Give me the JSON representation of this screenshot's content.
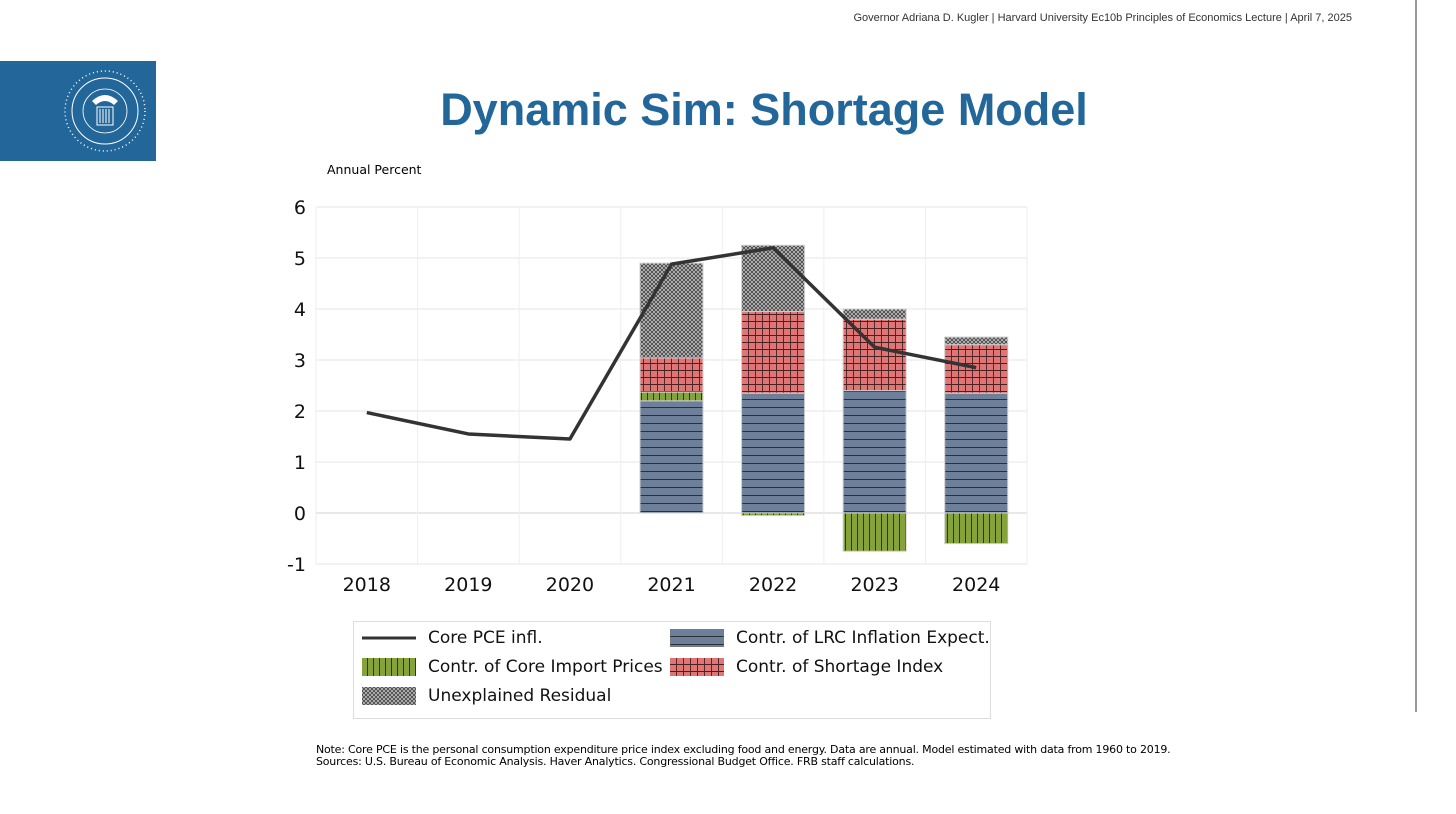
{
  "header": {
    "text": "Governor Adriana D. Kugler | Harvard University Ec10b Principles of Economics Lecture | April 7, 2025"
  },
  "seal": {
    "text": "BOARD OF GOVERNORS OF THE FEDERAL RESERVE SYSTEM"
  },
  "title": "Dynamic Sim: Shortage Model",
  "chart_data": {
    "type": "bar",
    "stacked": true,
    "ylabel": "Annual Percent",
    "ylim": [
      -1,
      6
    ],
    "yticks": [
      "6",
      "5",
      "4",
      "3",
      "2",
      "1",
      "0",
      "-1"
    ],
    "categories": [
      "2018",
      "2019",
      "2020",
      "2021",
      "2022",
      "2023",
      "2024"
    ],
    "grid": true,
    "series": [
      {
        "name": "Contr. of LRC Inflation Expect.",
        "kind": "bar",
        "color": "#6e7f99",
        "values": [
          null,
          null,
          null,
          2.2,
          2.35,
          2.4,
          2.35
        ]
      },
      {
        "name": "Contr. of Core Import Prices",
        "kind": "bar",
        "color": "#86a23a",
        "values": [
          null,
          null,
          null,
          0.17,
          -0.05,
          -0.75,
          -0.6
        ]
      },
      {
        "name": "Contr. of Shortage Index",
        "kind": "bar",
        "color": "#e07575",
        "values": [
          null,
          null,
          null,
          0.67,
          1.6,
          1.4,
          0.95
        ]
      },
      {
        "name": "Unexplained Residual",
        "kind": "bar",
        "color": "#a0a0a0",
        "values": [
          null,
          null,
          null,
          1.86,
          1.3,
          0.2,
          0.15
        ]
      },
      {
        "name": "Core PCE infl.",
        "kind": "line",
        "color": "#333333",
        "values": [
          1.97,
          1.55,
          1.45,
          4.88,
          5.2,
          3.25,
          2.85
        ]
      }
    ],
    "legend_position": "bottom"
  },
  "note": "Note: Core PCE is the personal consumption expenditure price index excluding food and energy. Data are annual. Model estimated with data from 1960 to 2019.",
  "sources": "Sources: U.S. Bureau of Economic Analysis. Haver Analytics. Congressional Budget Office. FRB staff calculations."
}
